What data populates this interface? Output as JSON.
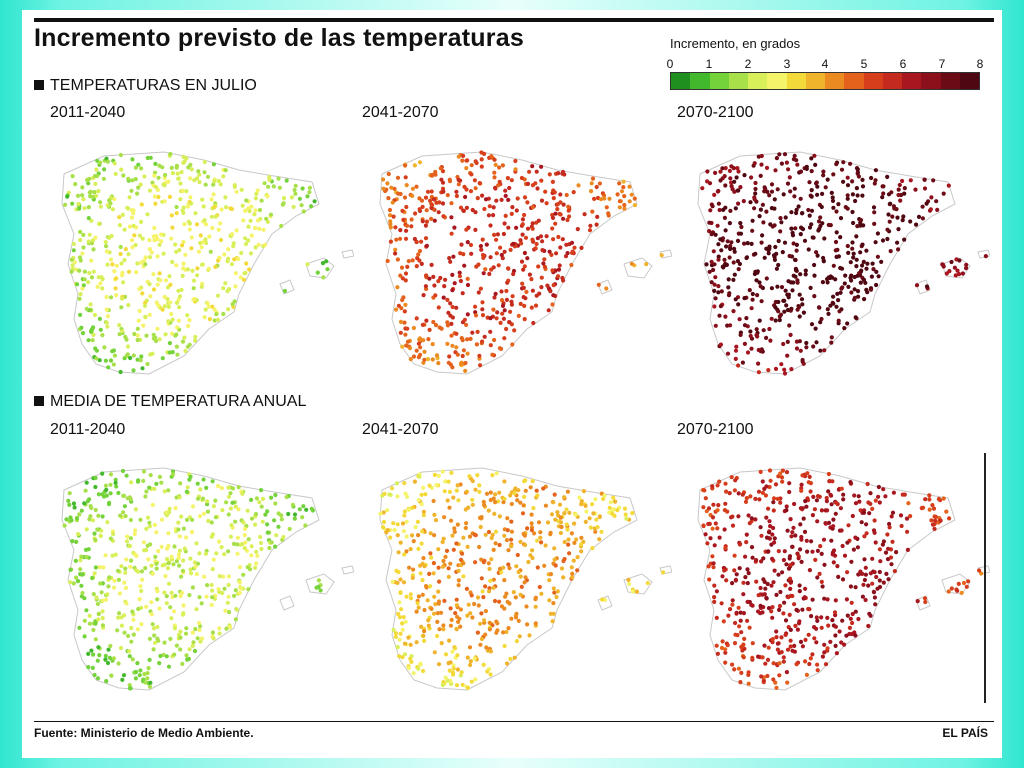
{
  "title": "Incremento previsto de las temperaturas",
  "legend": {
    "title": "Incremento, en grados",
    "ticks": [
      "0",
      "1",
      "2",
      "3",
      "4",
      "5",
      "6",
      "7",
      "8"
    ],
    "colors": [
      "#1f8f1f",
      "#42b92d",
      "#74d23a",
      "#a8e04a",
      "#d9ef5a",
      "#f5f36a",
      "#f3da3a",
      "#f0b32c",
      "#ec8a22",
      "#e4621c",
      "#d63e1c",
      "#c42a1e",
      "#a8161f",
      "#8c0f1c",
      "#6b0b16",
      "#4f0711"
    ]
  },
  "sections": [
    {
      "label": "TEMPERATURAS EN JULIO",
      "periods": [
        {
          "label": "2011-2040",
          "mean_increment": 1.6
        },
        {
          "label": "2041-2070",
          "mean_increment": 4.8
        },
        {
          "label": "2070-2100",
          "mean_increment": 7.2
        }
      ]
    },
    {
      "label": "MEDIA DE TEMPERATURA ANUAL",
      "periods": [
        {
          "label": "2011-2040",
          "mean_increment": 1.3
        },
        {
          "label": "2041-2070",
          "mean_increment": 3.2
        },
        {
          "label": "2070-2100",
          "mean_increment": 5.6
        }
      ]
    }
  ],
  "footer": {
    "source": "Fuente: Ministerio de Medio Ambiente.",
    "credit": "EL PAÍS"
  }
}
